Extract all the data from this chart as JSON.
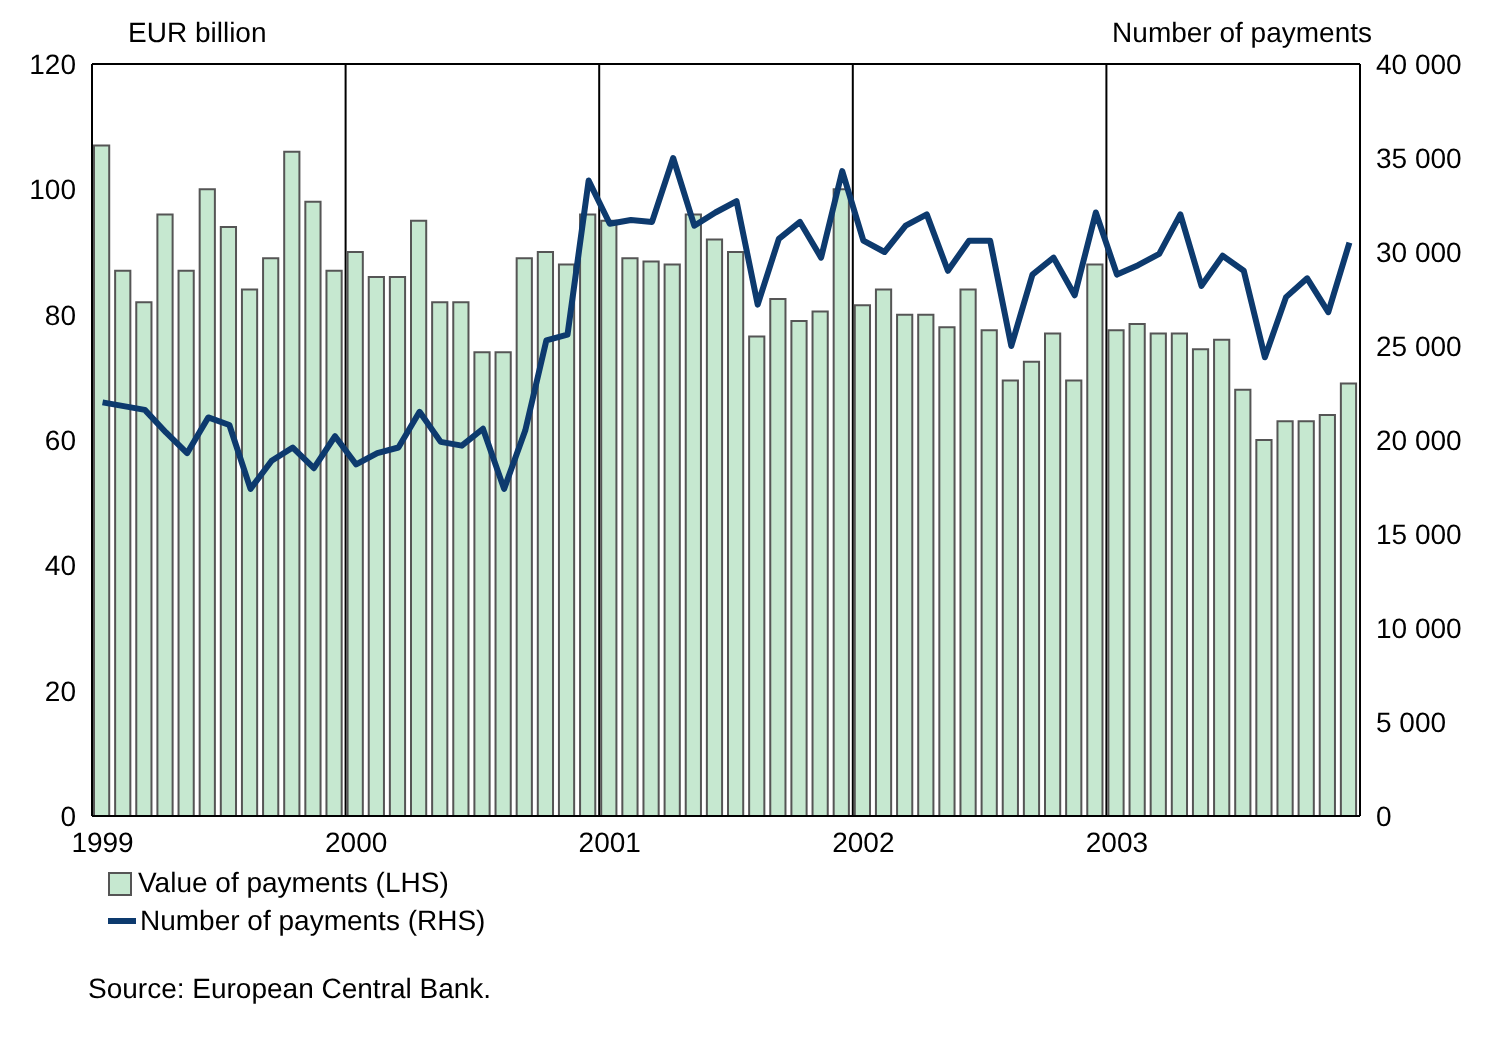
{
  "chart_data": {
    "type": "bar",
    "ylabel": "EUR billion",
    "y2label": "Number of payments",
    "categories": [
      "1999",
      null,
      null,
      null,
      null,
      null,
      null,
      null,
      null,
      null,
      null,
      null,
      "2000",
      null,
      null,
      null,
      null,
      null,
      null,
      null,
      null,
      null,
      null,
      null,
      "2001",
      null,
      null,
      null,
      null,
      null,
      null,
      null,
      null,
      null,
      null,
      null,
      "2002",
      null,
      null,
      null,
      null,
      null,
      null,
      null,
      null,
      null,
      null,
      null,
      "2003",
      null,
      null,
      null,
      null,
      null,
      null,
      null,
      null,
      null,
      null,
      null
    ],
    "series": [
      {
        "name": "Value of payments (LHS)",
        "color": "#c6e8d0",
        "values": [
          107,
          87,
          82,
          96,
          87,
          100,
          94,
          84,
          89,
          106,
          98,
          87,
          90,
          86,
          86,
          95,
          82,
          82,
          74,
          74,
          89,
          90,
          88,
          96,
          95,
          89,
          88.5,
          88,
          96,
          92,
          90,
          76.5,
          82.5,
          79,
          80.5,
          100,
          81.5,
          84,
          80,
          80,
          78,
          84,
          77.5,
          69.5,
          72.5,
          77,
          69.5,
          88,
          77.5,
          78.5,
          77,
          77,
          74.5,
          76,
          68,
          60,
          63,
          63,
          64,
          69
        ]
      },
      {
        "name": "Number of payments (RHS)",
        "type": "line",
        "axis": "y2",
        "color": "#0d3a6e",
        "values": [
          22000,
          21800,
          21600,
          20400,
          19300,
          21200,
          20800,
          17400,
          18900,
          19600,
          18500,
          20200,
          18700,
          19300,
          19600,
          21500,
          19900,
          19700,
          20600,
          17400,
          20500,
          25300,
          25600,
          33800,
          31500,
          31700,
          31600,
          35000,
          31400,
          32100,
          32700,
          27200,
          30700,
          31600,
          29700,
          34300,
          30600,
          30000,
          31400,
          32000,
          29000,
          30600,
          30600,
          25000,
          28800,
          29700,
          27700,
          32100,
          28800,
          29300,
          29900,
          32000,
          28200,
          29800,
          29000,
          24400,
          27600,
          28600,
          26800,
          30500
        ]
      }
    ],
    "ylim": [
      0,
      120
    ],
    "yticks": [
      0,
      20,
      40,
      60,
      80,
      100,
      120
    ],
    "y2lim": [
      0,
      40000
    ],
    "y2ticks": [
      0,
      {
        "value": 5000,
        "label": "5 000"
      },
      {
        "value": 10000,
        "label": "10 000"
      },
      {
        "value": 15000,
        "label": "15 000"
      },
      {
        "value": 20000,
        "label": "20 000"
      },
      {
        "value": 25000,
        "label": "25 000"
      },
      {
        "value": 30000,
        "label": "30 000"
      },
      {
        "value": 35000,
        "label": "35 000"
      },
      {
        "value": 40000,
        "label": "40 000"
      }
    ],
    "grid": true,
    "legend": "bottom left",
    "annotations": [
      "Source: European Central Bank."
    ]
  }
}
